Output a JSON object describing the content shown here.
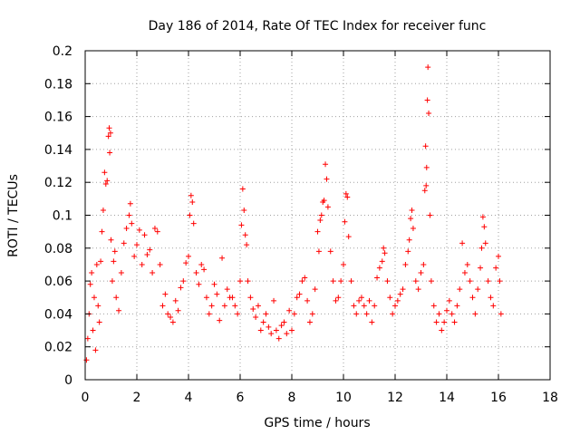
{
  "chart_data": {
    "type": "scatter",
    "title": "Day 186 of 2014, Rate Of TEC Index for receiver func",
    "xlabel": "GPS time / hours",
    "ylabel": "ROTI / TECUs",
    "xlim": [
      0,
      18
    ],
    "ylim": [
      0,
      0.2
    ],
    "xticks": [
      0,
      2,
      4,
      6,
      8,
      10,
      12,
      14,
      16,
      18
    ],
    "yticks": [
      0,
      0.02,
      0.04,
      0.06,
      0.08,
      0.1,
      0.12,
      0.14,
      0.16,
      0.18,
      0.2
    ],
    "xtick_labels": [
      "0",
      "2",
      "4",
      "6",
      "8",
      "10",
      "12",
      "14",
      "16",
      "18"
    ],
    "ytick_labels": [
      "0",
      "0.02",
      "0.04",
      "0.06",
      "0.08",
      "0.1",
      "0.12",
      "0.14",
      "0.16",
      "0.18",
      "0.2"
    ],
    "grid": true,
    "marker": "+",
    "color": "#ff0000",
    "series": [
      {
        "name": "ROTI",
        "points": [
          [
            0.05,
            0.012
          ],
          [
            0.1,
            0.025
          ],
          [
            0.15,
            0.04
          ],
          [
            0.2,
            0.058
          ],
          [
            0.25,
            0.065
          ],
          [
            0.3,
            0.03
          ],
          [
            0.35,
            0.05
          ],
          [
            0.4,
            0.018
          ],
          [
            0.45,
            0.07
          ],
          [
            0.5,
            0.045
          ],
          [
            0.55,
            0.035
          ],
          [
            0.6,
            0.072
          ],
          [
            0.65,
            0.09
          ],
          [
            0.7,
            0.103
          ],
          [
            0.75,
            0.126
          ],
          [
            0.8,
            0.119
          ],
          [
            0.85,
            0.121
          ],
          [
            0.9,
            0.148
          ],
          [
            0.93,
            0.153
          ],
          [
            0.95,
            0.138
          ],
          [
            0.98,
            0.15
          ],
          [
            1.0,
            0.085
          ],
          [
            1.05,
            0.06
          ],
          [
            1.1,
            0.072
          ],
          [
            1.15,
            0.078
          ],
          [
            1.2,
            0.05
          ],
          [
            1.3,
            0.042
          ],
          [
            1.4,
            0.065
          ],
          [
            1.5,
            0.083
          ],
          [
            1.6,
            0.092
          ],
          [
            1.7,
            0.1
          ],
          [
            1.75,
            0.107
          ],
          [
            1.8,
            0.095
          ],
          [
            1.9,
            0.075
          ],
          [
            2.0,
            0.082
          ],
          [
            2.1,
            0.091
          ],
          [
            2.2,
            0.07
          ],
          [
            2.3,
            0.088
          ],
          [
            2.4,
            0.076
          ],
          [
            2.5,
            0.079
          ],
          [
            2.6,
            0.065
          ],
          [
            2.7,
            0.092
          ],
          [
            2.8,
            0.09
          ],
          [
            2.9,
            0.07
          ],
          [
            3.0,
            0.045
          ],
          [
            3.1,
            0.052
          ],
          [
            3.2,
            0.04
          ],
          [
            3.3,
            0.038
          ],
          [
            3.4,
            0.035
          ],
          [
            3.5,
            0.048
          ],
          [
            3.6,
            0.042
          ],
          [
            3.7,
            0.056
          ],
          [
            3.8,
            0.06
          ],
          [
            3.9,
            0.071
          ],
          [
            4.0,
            0.075
          ],
          [
            4.05,
            0.1
          ],
          [
            4.1,
            0.112
          ],
          [
            4.15,
            0.108
          ],
          [
            4.2,
            0.095
          ],
          [
            4.3,
            0.065
          ],
          [
            4.4,
            0.058
          ],
          [
            4.5,
            0.07
          ],
          [
            4.6,
            0.067
          ],
          [
            4.7,
            0.05
          ],
          [
            4.8,
            0.04
          ],
          [
            4.9,
            0.045
          ],
          [
            5.0,
            0.058
          ],
          [
            5.1,
            0.052
          ],
          [
            5.2,
            0.036
          ],
          [
            5.3,
            0.074
          ],
          [
            5.4,
            0.045
          ],
          [
            5.5,
            0.055
          ],
          [
            5.6,
            0.05
          ],
          [
            5.7,
            0.05
          ],
          [
            5.8,
            0.045
          ],
          [
            5.9,
            0.04
          ],
          [
            6.0,
            0.06
          ],
          [
            6.05,
            0.094
          ],
          [
            6.1,
            0.116
          ],
          [
            6.15,
            0.103
          ],
          [
            6.2,
            0.088
          ],
          [
            6.25,
            0.082
          ],
          [
            6.3,
            0.06
          ],
          [
            6.4,
            0.05
          ],
          [
            6.5,
            0.043
          ],
          [
            6.6,
            0.038
          ],
          [
            6.7,
            0.045
          ],
          [
            6.8,
            0.03
          ],
          [
            6.9,
            0.035
          ],
          [
            7.0,
            0.04
          ],
          [
            7.1,
            0.032
          ],
          [
            7.2,
            0.028
          ],
          [
            7.3,
            0.048
          ],
          [
            7.4,
            0.03
          ],
          [
            7.5,
            0.025
          ],
          [
            7.6,
            0.033
          ],
          [
            7.7,
            0.035
          ],
          [
            7.8,
            0.028
          ],
          [
            7.9,
            0.042
          ],
          [
            8.0,
            0.03
          ],
          [
            8.1,
            0.04
          ],
          [
            8.2,
            0.05
          ],
          [
            8.3,
            0.052
          ],
          [
            8.4,
            0.06
          ],
          [
            8.5,
            0.062
          ],
          [
            8.6,
            0.048
          ],
          [
            8.7,
            0.035
          ],
          [
            8.8,
            0.04
          ],
          [
            8.9,
            0.055
          ],
          [
            9.0,
            0.09
          ],
          [
            9.05,
            0.078
          ],
          [
            9.1,
            0.097
          ],
          [
            9.15,
            0.1
          ],
          [
            9.2,
            0.108
          ],
          [
            9.25,
            0.109
          ],
          [
            9.3,
            0.131
          ],
          [
            9.35,
            0.122
          ],
          [
            9.4,
            0.105
          ],
          [
            9.5,
            0.078
          ],
          [
            9.6,
            0.06
          ],
          [
            9.7,
            0.048
          ],
          [
            9.8,
            0.05
          ],
          [
            9.9,
            0.06
          ],
          [
            10.0,
            0.07
          ],
          [
            10.05,
            0.096
          ],
          [
            10.1,
            0.113
          ],
          [
            10.15,
            0.111
          ],
          [
            10.2,
            0.087
          ],
          [
            10.3,
            0.06
          ],
          [
            10.4,
            0.045
          ],
          [
            10.5,
            0.04
          ],
          [
            10.6,
            0.048
          ],
          [
            10.7,
            0.05
          ],
          [
            10.8,
            0.045
          ],
          [
            10.9,
            0.04
          ],
          [
            11.0,
            0.048
          ],
          [
            11.1,
            0.035
          ],
          [
            11.2,
            0.045
          ],
          [
            11.3,
            0.062
          ],
          [
            11.4,
            0.068
          ],
          [
            11.5,
            0.072
          ],
          [
            11.55,
            0.08
          ],
          [
            11.6,
            0.077
          ],
          [
            11.7,
            0.06
          ],
          [
            11.8,
            0.05
          ],
          [
            11.9,
            0.04
          ],
          [
            12.0,
            0.045
          ],
          [
            12.1,
            0.048
          ],
          [
            12.2,
            0.052
          ],
          [
            12.3,
            0.055
          ],
          [
            12.4,
            0.07
          ],
          [
            12.5,
            0.078
          ],
          [
            12.55,
            0.085
          ],
          [
            12.6,
            0.098
          ],
          [
            12.65,
            0.103
          ],
          [
            12.7,
            0.092
          ],
          [
            12.8,
            0.06
          ],
          [
            12.9,
            0.055
          ],
          [
            13.0,
            0.065
          ],
          [
            13.1,
            0.07
          ],
          [
            13.15,
            0.115
          ],
          [
            13.18,
            0.142
          ],
          [
            13.2,
            0.118
          ],
          [
            13.22,
            0.129
          ],
          [
            13.25,
            0.17
          ],
          [
            13.27,
            0.19
          ],
          [
            13.3,
            0.162
          ],
          [
            13.35,
            0.1
          ],
          [
            13.4,
            0.06
          ],
          [
            13.5,
            0.045
          ],
          [
            13.6,
            0.035
          ],
          [
            13.7,
            0.04
          ],
          [
            13.8,
            0.03
          ],
          [
            13.9,
            0.035
          ],
          [
            14.0,
            0.042
          ],
          [
            14.1,
            0.048
          ],
          [
            14.2,
            0.04
          ],
          [
            14.3,
            0.035
          ],
          [
            14.4,
            0.045
          ],
          [
            14.5,
            0.055
          ],
          [
            14.6,
            0.083
          ],
          [
            14.7,
            0.065
          ],
          [
            14.8,
            0.07
          ],
          [
            14.9,
            0.06
          ],
          [
            15.0,
            0.05
          ],
          [
            15.1,
            0.04
          ],
          [
            15.2,
            0.055
          ],
          [
            15.3,
            0.068
          ],
          [
            15.35,
            0.08
          ],
          [
            15.4,
            0.099
          ],
          [
            15.45,
            0.093
          ],
          [
            15.5,
            0.083
          ],
          [
            15.6,
            0.06
          ],
          [
            15.7,
            0.05
          ],
          [
            15.8,
            0.045
          ],
          [
            15.9,
            0.068
          ],
          [
            16.0,
            0.075
          ],
          [
            16.05,
            0.06
          ],
          [
            16.1,
            0.04
          ]
        ]
      }
    ]
  }
}
